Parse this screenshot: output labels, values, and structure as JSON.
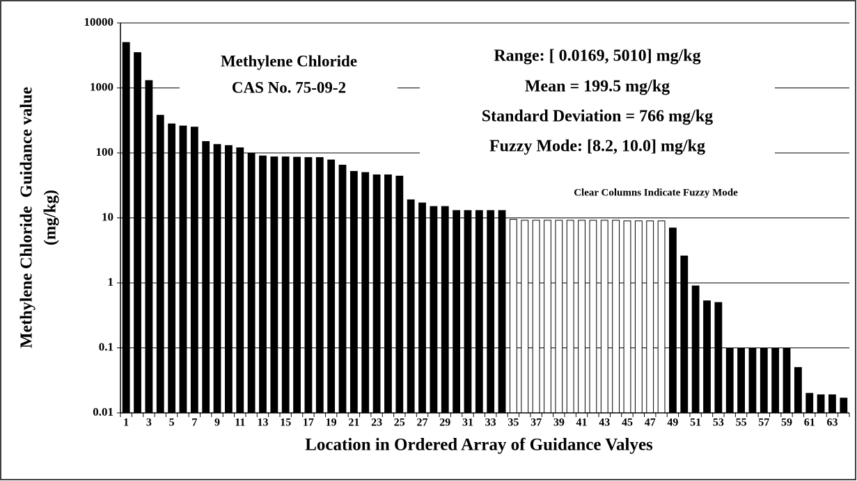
{
  "chart_data": {
    "type": "bar",
    "xlabel": "Location in Ordered Array of Guidance Valyes",
    "ylabel": [
      "Methylene Chloride  Guidance value",
      "(mg/kg)"
    ],
    "annotations": [
      "Methylene Chloride",
      "CAS No. 75-09-2",
      "Range: [ 0.0169, 5010] mg/kg",
      "Mean = 199.5 mg/kg",
      "Standard Deviation = 766 mg/kg",
      "Fuzzy Mode: [8.2, 10.0] mg/kg",
      "Clear Columns Indicate Fuzzy Mode"
    ],
    "categories": [
      1,
      null,
      3,
      null,
      5,
      null,
      7,
      null,
      9,
      null,
      11,
      null,
      13,
      null,
      15,
      null,
      17,
      null,
      19,
      null,
      21,
      null,
      23,
      null,
      25,
      null,
      27,
      null,
      29,
      null,
      31,
      null,
      33,
      null,
      35,
      null,
      37,
      null,
      39,
      null,
      41,
      null,
      43,
      null,
      45,
      null,
      47,
      null,
      49,
      null,
      51,
      null,
      53,
      null,
      55,
      null,
      57,
      null,
      59,
      null,
      61,
      null,
      63,
      null
    ],
    "series": [
      {
        "color": "#000000",
        "values": [
          5010,
          3500,
          1300,
          380,
          280,
          260,
          250,
          150,
          135,
          130,
          120,
          100,
          90,
          87,
          87,
          86,
          85,
          85,
          78,
          65,
          52,
          50,
          46,
          46,
          44,
          19,
          17,
          15,
          15,
          13,
          13,
          13,
          13,
          13,
          null,
          null,
          null,
          null,
          null,
          null,
          null,
          null,
          null,
          null,
          null,
          null,
          null,
          null,
          7,
          2.6,
          0.9,
          0.53,
          0.5,
          0.1,
          0.1,
          0.1,
          0.1,
          0.1,
          0.1,
          0.05,
          0.02,
          0.019,
          0.019,
          0.0169
        ]
      },
      {
        "color": "#ffffff",
        "values": [
          null,
          null,
          null,
          null,
          null,
          null,
          null,
          null,
          null,
          null,
          null,
          null,
          null,
          null,
          null,
          null,
          null,
          null,
          null,
          null,
          null,
          null,
          null,
          null,
          null,
          null,
          null,
          null,
          null,
          null,
          null,
          null,
          null,
          null,
          9.5,
          9.2,
          9.2,
          9.2,
          9.2,
          9.2,
          9.2,
          9.2,
          9.2,
          9.2,
          9,
          9,
          9,
          9,
          null,
          null,
          null,
          null,
          null,
          null,
          null,
          null,
          null,
          null,
          null,
          null,
          null,
          null,
          null,
          null
        ]
      }
    ],
    "log_y": true,
    "ylim": [
      0.01,
      10000
    ],
    "yticks": [
      0.01,
      0.1,
      1,
      10,
      100,
      1000,
      10000
    ],
    "grid": true
  }
}
